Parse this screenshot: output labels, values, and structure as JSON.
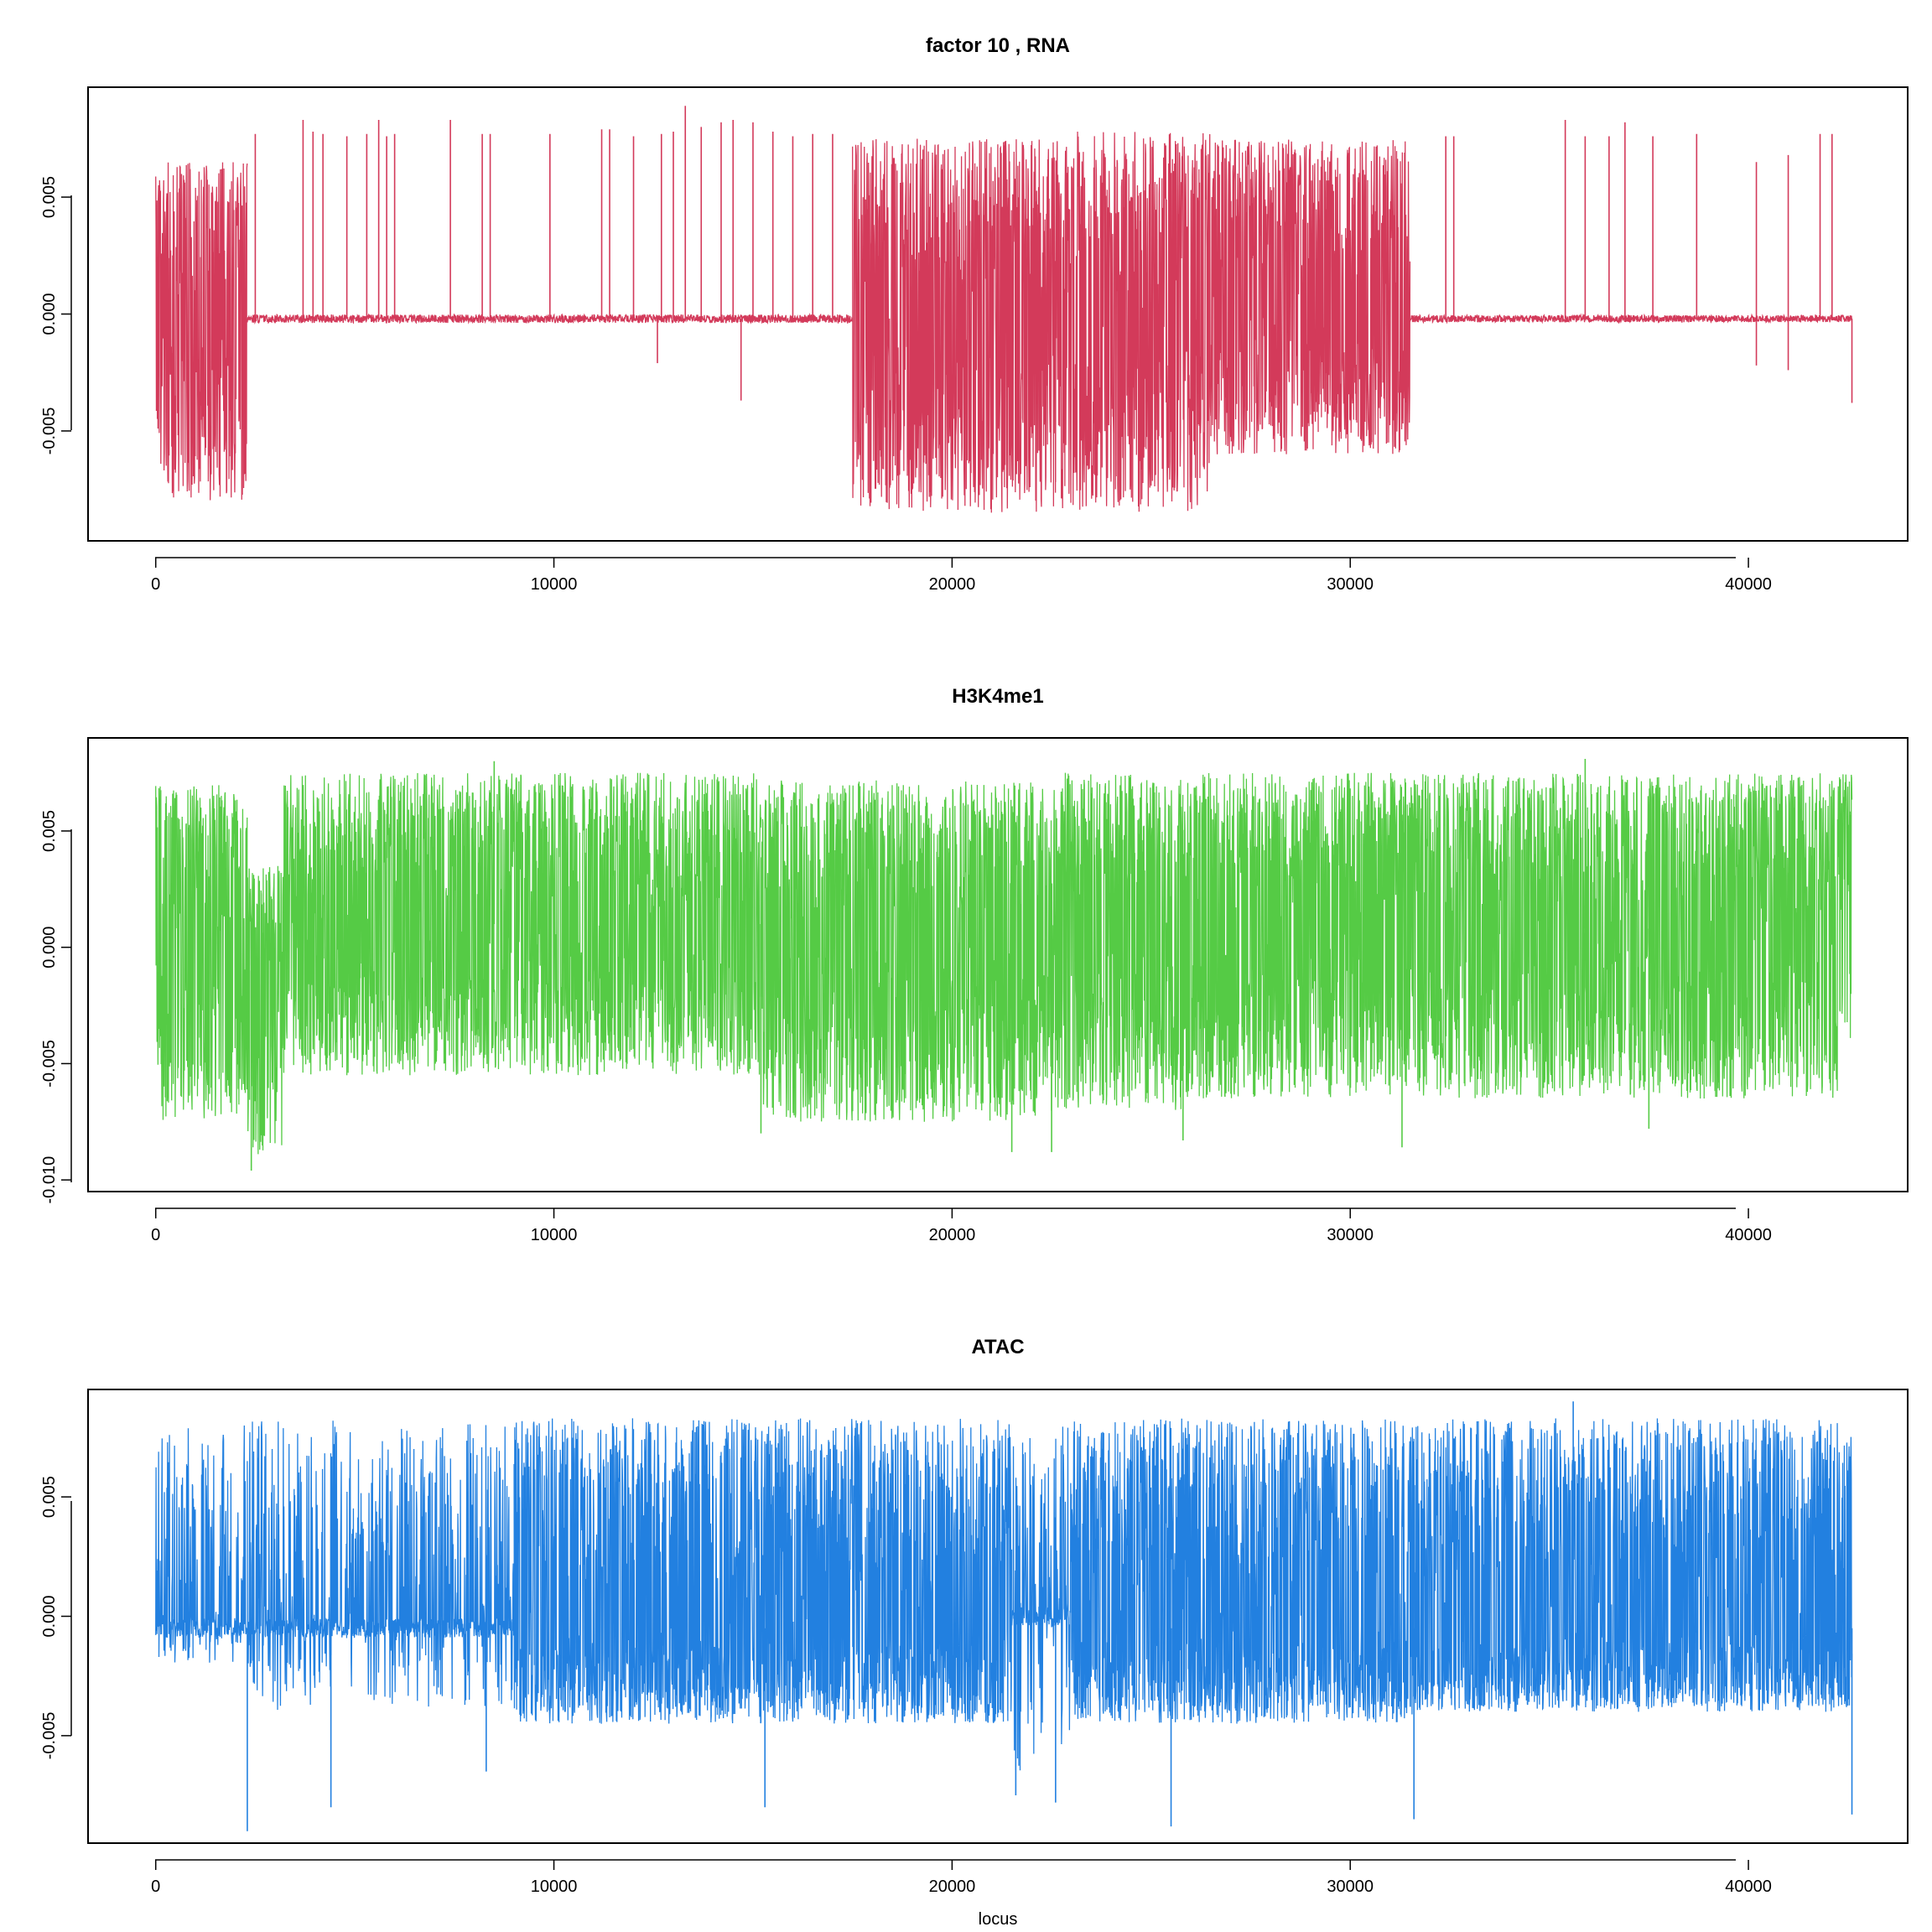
{
  "chart_data": [
    {
      "type": "line",
      "title": "factor  10 , RNA",
      "xlabel": "",
      "ylabel": "",
      "color": "#d33a5a",
      "xlim": [
        -1700,
        44000
      ],
      "ylim": [
        -0.0097,
        0.0097
      ],
      "xticks": [
        0,
        10000,
        20000,
        30000,
        40000
      ],
      "xtick_labels": [
        "0",
        "10000",
        "20000",
        "30000",
        "40000"
      ],
      "yticks": [
        -0.005,
        0.0,
        0.005
      ],
      "ytick_labels": [
        "-0.005",
        "0.000",
        "0.005"
      ],
      "grid": false,
      "segments": [
        {
          "x": [
            0,
            2300
          ],
          "amp_hi": 0.0065,
          "amp_lo": -0.008,
          "base": 0.0005,
          "profile": "dense"
        },
        {
          "x": [
            2300,
            17500
          ],
          "amp_hi": 0.0002,
          "amp_lo": -0.0004,
          "base": -0.0002,
          "profile": "flat"
        },
        {
          "x": [
            17500,
            22600
          ],
          "amp_hi": 0.0075,
          "amp_lo": -0.0085,
          "base": 0.0,
          "profile": "dense"
        },
        {
          "x": [
            22600,
            26500
          ],
          "amp_hi": 0.0078,
          "amp_lo": -0.0085,
          "base": 0.0,
          "profile": "dense"
        },
        {
          "x": [
            26500,
            31500
          ],
          "amp_hi": 0.0075,
          "amp_lo": -0.006,
          "base": 0.0005,
          "profile": "dense"
        },
        {
          "x": [
            31500,
            42600
          ],
          "amp_hi": 0.0002,
          "amp_lo": -0.0003,
          "base": -0.0002,
          "profile": "flat"
        }
      ],
      "spikes": [
        [
          2500,
          0.0077
        ],
        [
          3700,
          0.0083
        ],
        [
          3950,
          0.0078
        ],
        [
          4200,
          0.0077
        ],
        [
          4800,
          0.0076
        ],
        [
          5300,
          0.0077
        ],
        [
          5600,
          0.0083
        ],
        [
          5800,
          0.0076
        ],
        [
          6000,
          0.0077
        ],
        [
          7400,
          0.0083
        ],
        [
          8200,
          0.0077
        ],
        [
          8400,
          0.0077
        ],
        [
          9900,
          0.0077
        ],
        [
          11200,
          0.0079
        ],
        [
          11400,
          0.0079
        ],
        [
          12000,
          0.0076
        ],
        [
          12600,
          -0.0021
        ],
        [
          12700,
          0.0077
        ],
        [
          13000,
          0.0078
        ],
        [
          13300,
          0.0089
        ],
        [
          13700,
          0.008
        ],
        [
          14200,
          0.0082
        ],
        [
          14500,
          0.0083
        ],
        [
          14700,
          -0.0037
        ],
        [
          15000,
          0.0082
        ],
        [
          15500,
          0.0078
        ],
        [
          16000,
          0.0076
        ],
        [
          16500,
          0.0077
        ],
        [
          17000,
          0.0077
        ],
        [
          32400,
          0.0076
        ],
        [
          32600,
          0.0076
        ],
        [
          35400,
          0.0083
        ],
        [
          35900,
          0.0076
        ],
        [
          36500,
          0.0076
        ],
        [
          36900,
          0.0082
        ],
        [
          37600,
          0.0076
        ],
        [
          38700,
          0.0077
        ],
        [
          40200,
          0.0065
        ],
        [
          40200,
          -0.0022
        ],
        [
          41000,
          0.0068
        ],
        [
          41000,
          -0.0024
        ],
        [
          41800,
          0.0077
        ],
        [
          42100,
          0.0077
        ],
        [
          42600,
          -0.0038
        ]
      ]
    },
    {
      "type": "line",
      "title": "H3K4me1",
      "xlabel": "",
      "ylabel": "",
      "color": "#55cb45",
      "xlim": [
        -1700,
        44000
      ],
      "ylim": [
        -0.0105,
        0.009
      ],
      "xticks": [
        0,
        10000,
        20000,
        30000,
        40000
      ],
      "xtick_labels": [
        "0",
        "10000",
        "20000",
        "30000",
        "40000"
      ],
      "yticks": [
        -0.01,
        -0.005,
        0.0,
        0.005
      ],
      "ytick_labels": [
        "-0.010",
        "-0.005",
        "0.000",
        "0.005"
      ],
      "grid": false,
      "segments": [
        {
          "x": [
            0,
            2300
          ],
          "amp_hi": 0.007,
          "amp_lo": -0.0075,
          "base": 0.0005,
          "profile": "dense"
        },
        {
          "x": [
            2300,
            3200
          ],
          "amp_hi": 0.0035,
          "amp_lo": -0.009,
          "base": -0.001,
          "profile": "dense"
        },
        {
          "x": [
            3200,
            15200
          ],
          "amp_hi": 0.0075,
          "amp_lo": -0.0055,
          "base": 0.001,
          "profile": "dense"
        },
        {
          "x": [
            15200,
            22500
          ],
          "amp_hi": 0.0072,
          "amp_lo": -0.0075,
          "base": 0.0005,
          "profile": "dense"
        },
        {
          "x": [
            22500,
            25800
          ],
          "amp_hi": 0.0075,
          "amp_lo": -0.007,
          "base": 0.0005,
          "profile": "dense"
        },
        {
          "x": [
            25800,
            42600
          ],
          "amp_hi": 0.0075,
          "amp_lo": -0.0065,
          "base": 0.0008,
          "profile": "dense"
        }
      ],
      "spikes": [
        [
          2400,
          -0.0096
        ],
        [
          8500,
          0.008
        ],
        [
          15200,
          -0.008
        ],
        [
          21500,
          -0.0088
        ],
        [
          22500,
          -0.0088
        ],
        [
          25800,
          -0.0083
        ],
        [
          31300,
          -0.0086
        ],
        [
          35900,
          0.0081
        ],
        [
          37500,
          -0.0078
        ]
      ]
    },
    {
      "type": "line",
      "title": "ATAC",
      "xlabel": "locus",
      "ylabel": "",
      "color": "#2280e0",
      "xlim": [
        -1700,
        44000
      ],
      "ylim": [
        -0.0095,
        0.0095
      ],
      "xticks": [
        0,
        10000,
        20000,
        30000,
        40000
      ],
      "xtick_labels": [
        "0",
        "10000",
        "20000",
        "30000",
        "40000"
      ],
      "yticks": [
        -0.005,
        0.0,
        0.005
      ],
      "ytick_labels": [
        "-0.005",
        "0.000",
        "0.005"
      ],
      "grid": false,
      "segments": [
        {
          "x": [
            0,
            2300
          ],
          "amp_hi": 0.0082,
          "amp_lo": -0.002,
          "base": -0.0005,
          "profile": "sparse"
        },
        {
          "x": [
            2300,
            9000
          ],
          "amp_hi": 0.0082,
          "amp_lo": -0.004,
          "base": -0.0005,
          "profile": "sparse"
        },
        {
          "x": [
            9000,
            21500
          ],
          "amp_hi": 0.0083,
          "amp_lo": -0.0045,
          "base": -0.0005,
          "profile": "dense"
        },
        {
          "x": [
            21500,
            23000
          ],
          "amp_hi": 0.008,
          "amp_lo": -0.007,
          "base": 0.0,
          "profile": "sparse"
        },
        {
          "x": [
            23000,
            31600
          ],
          "amp_hi": 0.0083,
          "amp_lo": -0.0045,
          "base": -0.0005,
          "profile": "dense"
        },
        {
          "x": [
            31600,
            42600
          ],
          "amp_hi": 0.0083,
          "amp_lo": -0.004,
          "base": -0.0005,
          "profile": "dense"
        }
      ],
      "spikes": [
        [
          2300,
          -0.009
        ],
        [
          4400,
          -0.008
        ],
        [
          8300,
          -0.0065
        ],
        [
          15300,
          -0.008
        ],
        [
          21600,
          -0.0075
        ],
        [
          22600,
          -0.0078
        ],
        [
          25500,
          -0.0088
        ],
        [
          31600,
          -0.0085
        ],
        [
          35600,
          0.009
        ],
        [
          42600,
          -0.0083
        ]
      ]
    }
  ]
}
